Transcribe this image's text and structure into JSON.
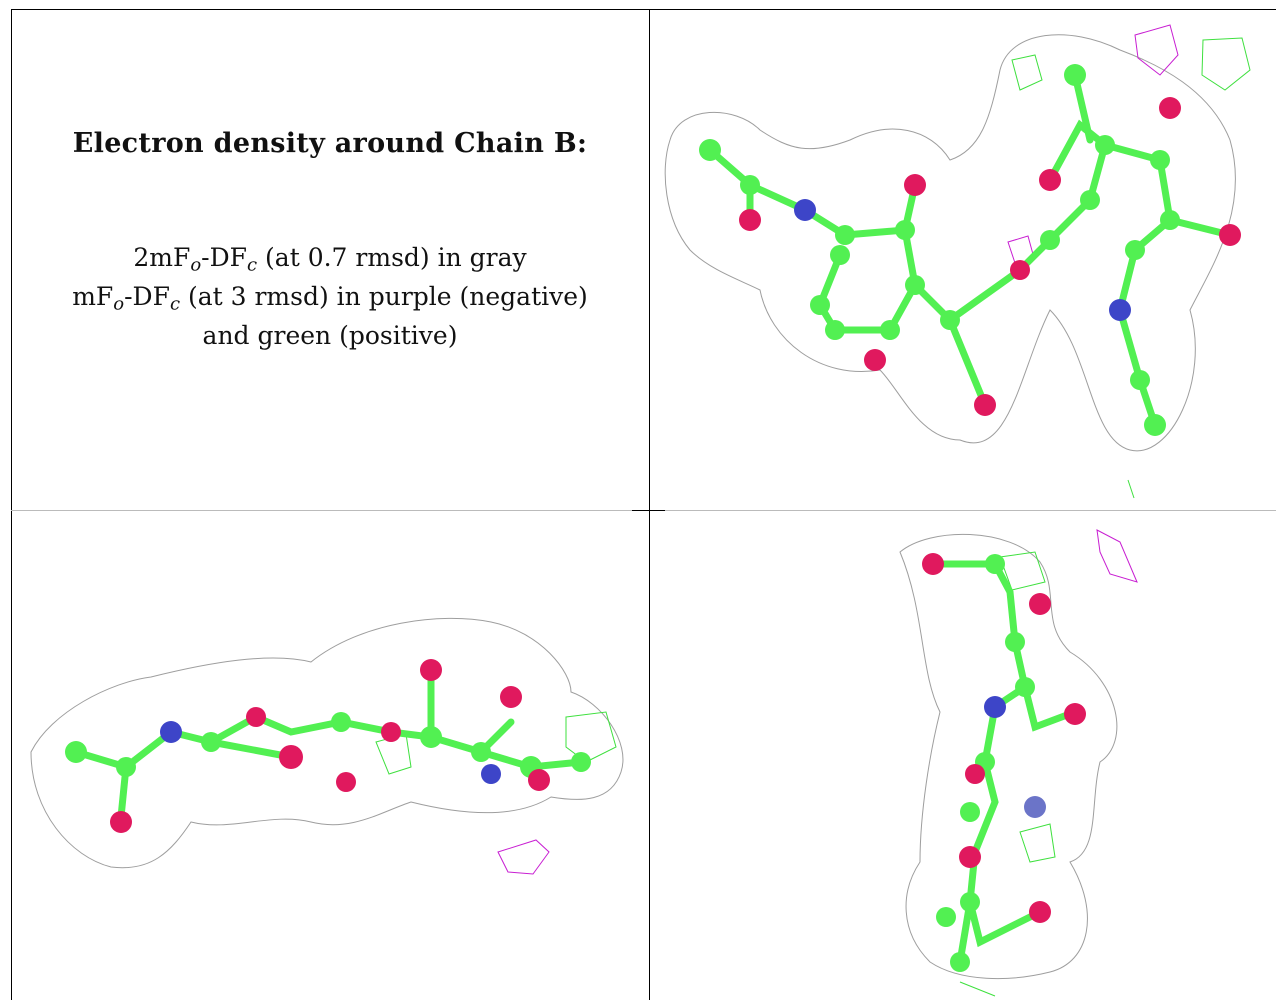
{
  "caption": {
    "title": "Electron density around Chain B:",
    "line1": {
      "prefix": "2mF",
      "sub1": "o",
      "mid": "-DF",
      "sub2": "c",
      "suffix": " (at 0.7 rmsd) in gray"
    },
    "line2": {
      "prefix": "mF",
      "sub1": "o",
      "mid": "-DF",
      "sub2": "c",
      "suffix": " (at 3 rmsd) in purple (negative)"
    },
    "line3": "and green (positive)"
  },
  "colors": {
    "mesh_2fofc": "#9e9e9e",
    "mesh_positive": "#3ee03e",
    "mesh_negative": "#c81ed2",
    "carbon": "#52f052",
    "oxygen": "#e0195e",
    "nitrogen": "#3d45c8"
  }
}
